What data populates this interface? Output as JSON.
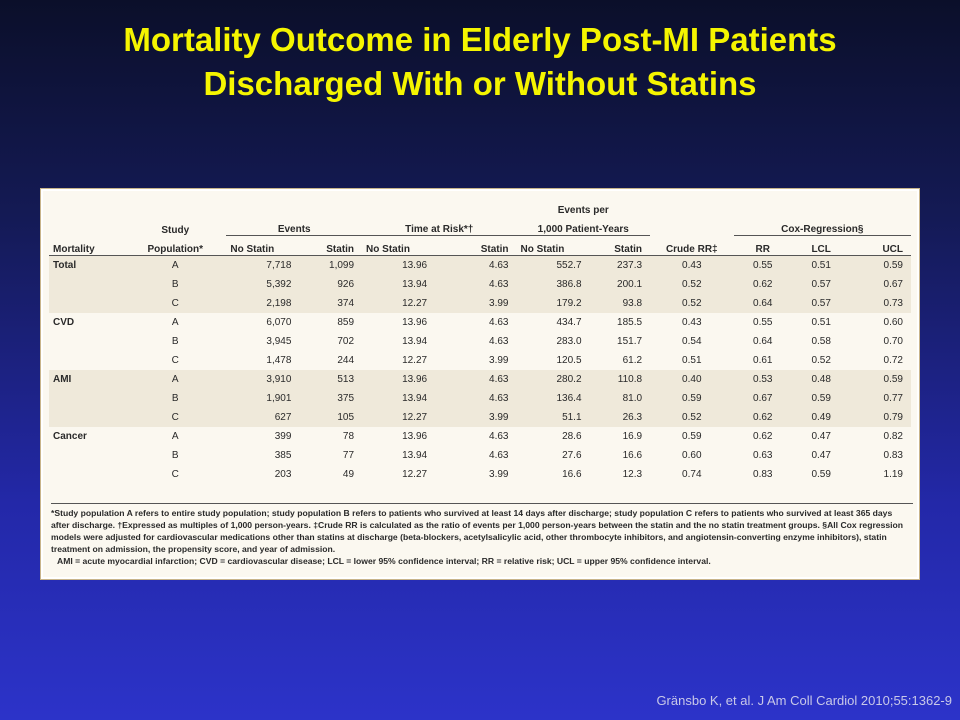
{
  "title_line1": "Mortality Outcome in Elderly Post-MI Patients",
  "title_line2": "Discharged With or Without Statins",
  "headers": {
    "events": "Events",
    "time_at_risk": "Time at Risk*†",
    "events_per_line1": "Events per",
    "events_per_line2": "1,000 Patient-Years",
    "cox": "Cox-Regression§",
    "study_line1": "Study",
    "study_line2": "Population*",
    "mortality": "Mortality",
    "no_statin": "No Statin",
    "statin": "Statin",
    "crude_rr": "Crude RR‡",
    "rr": "RR",
    "lcl": "LCL",
    "ucl": "UCL"
  },
  "rows": [
    [
      "Total",
      "A",
      "7,718",
      "1,099",
      "13.96",
      "4.63",
      "552.7",
      "237.3",
      "0.43",
      "0.55",
      "0.51",
      "0.59"
    ],
    [
      "",
      "B",
      "5,392",
      "926",
      "13.94",
      "4.63",
      "386.8",
      "200.1",
      "0.52",
      "0.62",
      "0.57",
      "0.67"
    ],
    [
      "",
      "C",
      "2,198",
      "374",
      "12.27",
      "3.99",
      "179.2",
      "93.8",
      "0.52",
      "0.64",
      "0.57",
      "0.73"
    ],
    [
      "CVD",
      "A",
      "6,070",
      "859",
      "13.96",
      "4.63",
      "434.7",
      "185.5",
      "0.43",
      "0.55",
      "0.51",
      "0.60"
    ],
    [
      "",
      "B",
      "3,945",
      "702",
      "13.94",
      "4.63",
      "283.0",
      "151.7",
      "0.54",
      "0.64",
      "0.58",
      "0.70"
    ],
    [
      "",
      "C",
      "1,478",
      "244",
      "12.27",
      "3.99",
      "120.5",
      "61.2",
      "0.51",
      "0.61",
      "0.52",
      "0.72"
    ],
    [
      "AMI",
      "A",
      "3,910",
      "513",
      "13.96",
      "4.63",
      "280.2",
      "110.8",
      "0.40",
      "0.53",
      "0.48",
      "0.59"
    ],
    [
      "",
      "B",
      "1,901",
      "375",
      "13.94",
      "4.63",
      "136.4",
      "81.0",
      "0.59",
      "0.67",
      "0.59",
      "0.77"
    ],
    [
      "",
      "C",
      "627",
      "105",
      "12.27",
      "3.99",
      "51.1",
      "26.3",
      "0.52",
      "0.62",
      "0.49",
      "0.79"
    ],
    [
      "Cancer",
      "A",
      "399",
      "78",
      "13.96",
      "4.63",
      "28.6",
      "16.9",
      "0.59",
      "0.62",
      "0.47",
      "0.82"
    ],
    [
      "",
      "B",
      "385",
      "77",
      "13.94",
      "4.63",
      "27.6",
      "16.6",
      "0.60",
      "0.63",
      "0.47",
      "0.83"
    ],
    [
      "",
      "C",
      "203",
      "49",
      "12.27",
      "3.99",
      "16.6",
      "12.3",
      "0.74",
      "0.83",
      "0.59",
      "1.19"
    ]
  ],
  "footnote_main": "*Study population A refers to entire study population; study population B refers to patients who survived at least 14 days after discharge; study population C refers to patients who survived at least 365 days after discharge. †Expressed as multiples of 1,000 person-years. ‡Crude RR is calculated as the ratio of events per 1,000 person-years between the statin and the no statin treatment groups. §All Cox regression models were adjusted for cardiovascular medications other than statins at discharge (beta-blockers, acetylsalicylic acid, other thrombocyte inhibitors, and angiotensin-converting enzyme inhibitors), statin treatment on admission, the propensity score, and year of admission.",
  "footnote_abbrev": "AMI = acute myocardial infarction; CVD = cardiovascular disease; LCL = lower 95% confidence interval; RR = relative risk; UCL = upper 95% confidence interval.",
  "citation": "Gränsbo K, et al. J Am Coll Cardiol 2010;55:1362-9"
}
